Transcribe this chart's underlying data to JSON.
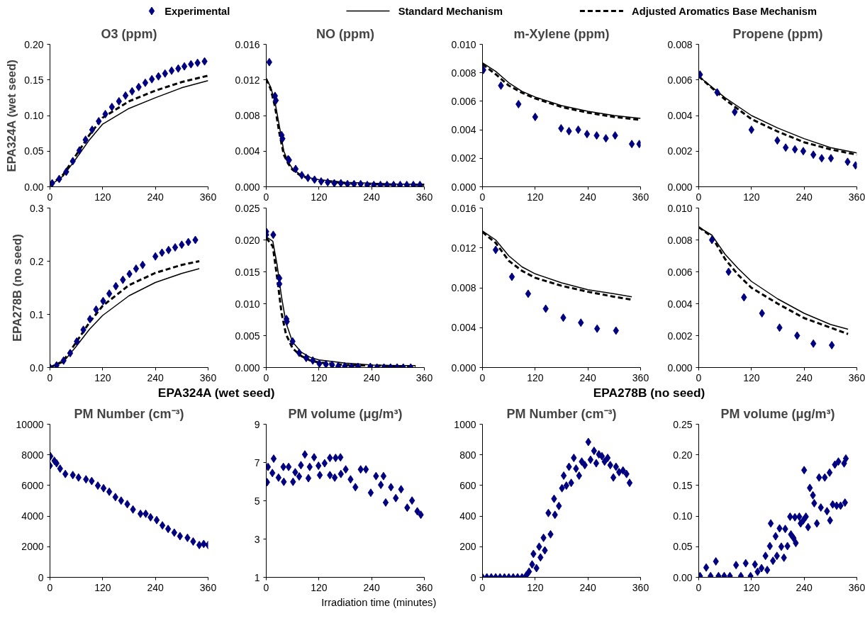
{
  "chart_data": [
    {
      "type": "line",
      "title": "O3 (ppm)",
      "ylabel": "EPA324A (wet seed)",
      "legend": "top",
      "xlim": [
        0,
        360
      ],
      "xticks": [
        0,
        120,
        240,
        360
      ],
      "ylim": [
        0,
        0.2
      ],
      "yticks": [
        {
          "value": 0,
          "label": "0.00"
        },
        {
          "value": 0.05,
          "label": "0.05"
        },
        {
          "value": 0.1,
          "label": "0.10"
        },
        {
          "value": 0.15,
          "label": "0.15"
        },
        {
          "value": 0.2,
          "label": "0.20"
        }
      ],
      "series": [
        {
          "name": "Experimental",
          "type": "scatter",
          "marker": "diamond",
          "color": "#000080",
          "x": [
            5,
            21,
            37,
            52,
            67,
            81,
            96,
            111,
            126,
            141,
            157,
            172,
            187,
            202,
            217,
            232,
            247,
            262,
            277,
            292,
            306,
            321,
            336,
            352
          ],
          "values": [
            0.005,
            0.011,
            0.021,
            0.036,
            0.051,
            0.066,
            0.08,
            0.092,
            0.102,
            0.112,
            0.12,
            0.128,
            0.134,
            0.14,
            0.146,
            0.151,
            0.155,
            0.159,
            0.163,
            0.166,
            0.169,
            0.172,
            0.174,
            0.176
          ]
        },
        {
          "name": "Standard Mechanism",
          "type": "line",
          "line_style": "solid",
          "color": "#000000",
          "x": [
            0,
            30,
            60,
            90,
            120,
            180,
            240,
            300,
            360
          ],
          "values": [
            0.002,
            0.015,
            0.04,
            0.066,
            0.088,
            0.11,
            0.125,
            0.139,
            0.149
          ]
        },
        {
          "name": "Adjusted Aromatics Base Mechanism",
          "type": "line",
          "line_style": "dashed",
          "color": "#000000",
          "x": [
            0,
            30,
            60,
            90,
            120,
            180,
            240,
            300,
            360
          ],
          "values": [
            0.002,
            0.017,
            0.045,
            0.073,
            0.097,
            0.12,
            0.135,
            0.147,
            0.156
          ]
        }
      ]
    },
    {
      "type": "line",
      "title": "NO (ppm)",
      "xlim": [
        0,
        360
      ],
      "xticks": [
        0,
        120,
        240,
        360
      ],
      "ylim": [
        0,
        0.016
      ],
      "yticks": [
        {
          "value": 0,
          "label": "0.000"
        },
        {
          "value": 0.004,
          "label": "0.004"
        },
        {
          "value": 0.008,
          "label": "0.008"
        },
        {
          "value": 0.012,
          "label": "0.012"
        },
        {
          "value": 0.016,
          "label": "0.016"
        }
      ],
      "series": [
        {
          "type": "scatter",
          "marker": "diamond",
          "color": "#000080",
          "x": [
            7,
            20,
            22,
            35,
            37,
            50,
            52,
            67,
            81,
            95,
            110,
            125,
            140,
            155,
            170,
            185,
            200,
            215,
            230,
            245,
            260,
            275,
            290,
            305,
            320,
            335,
            350
          ],
          "values": [
            0.014,
            0.0102,
            0.0097,
            0.0058,
            0.0054,
            0.0031,
            0.003,
            0.002,
            0.0013,
            0.001,
            0.0008,
            0.0006,
            0.0005,
            0.0004,
            0.0004,
            0.0003,
            0.0003,
            0.0003,
            0.0002,
            0.0002,
            0.0002,
            0.0002,
            0.0002,
            0.0002,
            0.0002,
            0.0002,
            0.0002
          ]
        },
        {
          "type": "line",
          "line_style": "solid",
          "color": "#000000",
          "x": [
            0,
            10,
            20,
            30,
            40,
            50,
            60,
            80,
            100,
            120,
            180,
            240,
            300,
            360
          ],
          "values": [
            0.0122,
            0.0112,
            0.0095,
            0.0068,
            0.004,
            0.0028,
            0.002,
            0.0013,
            0.001,
            0.0008,
            0.0005,
            0.0004,
            0.0003,
            0.0003
          ]
        },
        {
          "type": "line",
          "line_style": "dashed",
          "color": "#000000",
          "x": [
            0,
            10,
            20,
            30,
            40,
            50,
            60,
            80,
            100,
            120,
            180,
            240,
            300,
            360
          ],
          "values": [
            0.0121,
            0.011,
            0.009,
            0.006,
            0.0036,
            0.0026,
            0.0019,
            0.0012,
            0.0009,
            0.0007,
            0.0004,
            0.0003,
            0.0002,
            0.0002
          ]
        }
      ]
    },
    {
      "type": "line",
      "title": "m-Xylene (ppm)",
      "xlim": [
        0,
        360
      ],
      "xticks": [
        0,
        120,
        240,
        360
      ],
      "ylim": [
        0,
        0.01
      ],
      "yticks": [
        {
          "value": 0,
          "label": "0.000"
        },
        {
          "value": 0.002,
          "label": "0.002"
        },
        {
          "value": 0.004,
          "label": "0.004"
        },
        {
          "value": 0.006,
          "label": "0.006"
        },
        {
          "value": 0.008,
          "label": "0.008"
        },
        {
          "value": 0.01,
          "label": "0.010"
        }
      ],
      "series": [
        {
          "type": "scatter",
          "marker": "diamond",
          "color": "#000080",
          "x": [
            2,
            42,
            82,
            120,
            179,
            197,
            218,
            238,
            260,
            281,
            302,
            340,
            357
          ],
          "values": [
            0.0082,
            0.0071,
            0.0058,
            0.0049,
            0.0041,
            0.0039,
            0.004,
            0.0037,
            0.0036,
            0.0034,
            0.0036,
            0.003,
            0.003
          ]
        },
        {
          "type": "line",
          "line_style": "solid",
          "color": "#000000",
          "x": [
            0,
            30,
            60,
            90,
            120,
            180,
            240,
            300,
            360
          ],
          "values": [
            0.0087,
            0.0081,
            0.0073,
            0.0067,
            0.0063,
            0.0057,
            0.0053,
            0.005,
            0.0048
          ]
        },
        {
          "type": "line",
          "line_style": "dashed",
          "color": "#000000",
          "x": [
            0,
            30,
            60,
            90,
            120,
            180,
            240,
            300,
            360
          ],
          "values": [
            0.0086,
            0.0079,
            0.0071,
            0.0066,
            0.0062,
            0.0056,
            0.0052,
            0.0049,
            0.0047
          ]
        }
      ]
    },
    {
      "type": "line",
      "title": "Propene (ppm)",
      "xlim": [
        0,
        360
      ],
      "xticks": [
        0,
        120,
        240,
        360
      ],
      "ylim": [
        0,
        0.008
      ],
      "yticks": [
        {
          "value": 0,
          "label": "0.000"
        },
        {
          "value": 0.002,
          "label": "0.002"
        },
        {
          "value": 0.004,
          "label": "0.004"
        },
        {
          "value": 0.006,
          "label": "0.006"
        },
        {
          "value": 0.008,
          "label": "0.008"
        }
      ],
      "series": [
        {
          "type": "scatter",
          "marker": "diamond",
          "color": "#000080",
          "x": [
            3,
            42,
            82,
            120,
            179,
            198,
            219,
            238,
            261,
            280,
            301,
            339,
            357
          ],
          "values": [
            0.0063,
            0.0053,
            0.0042,
            0.0032,
            0.0026,
            0.0022,
            0.0021,
            0.002,
            0.0018,
            0.0016,
            0.0016,
            0.0014,
            0.0012
          ]
        },
        {
          "type": "line",
          "line_style": "solid",
          "color": "#000000",
          "x": [
            0,
            60,
            120,
            180,
            240,
            300,
            360
          ],
          "values": [
            0.0062,
            0.005,
            0.004,
            0.0033,
            0.0027,
            0.0022,
            0.0019
          ]
        },
        {
          "type": "line",
          "line_style": "dashed",
          "color": "#000000",
          "x": [
            0,
            60,
            120,
            180,
            240,
            300,
            360
          ],
          "values": [
            0.0062,
            0.0049,
            0.0038,
            0.0031,
            0.0025,
            0.0021,
            0.0018
          ]
        }
      ]
    },
    {
      "type": "line",
      "ylabel": "EPA278B (no seed)",
      "xlim": [
        0,
        360
      ],
      "xticks": [
        0,
        120,
        240,
        360
      ],
      "ylim": [
        0,
        0.3
      ],
      "yticks": [
        {
          "value": 0,
          "label": "0.0"
        },
        {
          "value": 0.1,
          "label": "0.1"
        },
        {
          "value": 0.2,
          "label": "0.2"
        },
        {
          "value": 0.3,
          "label": "0.3"
        }
      ],
      "series": [
        {
          "type": "scatter",
          "marker": "diamond",
          "color": "#000080",
          "x": [
            0,
            15,
            31,
            46,
            61,
            76,
            91,
            105,
            121,
            135,
            150,
            166,
            181,
            196,
            211,
            240,
            255,
            270,
            285,
            300,
            315,
            331
          ],
          "values": [
            0.0,
            0.004,
            0.013,
            0.027,
            0.049,
            0.071,
            0.091,
            0.109,
            0.125,
            0.139,
            0.153,
            0.165,
            0.176,
            0.186,
            0.193,
            0.209,
            0.216,
            0.221,
            0.226,
            0.231,
            0.236,
            0.24
          ]
        },
        {
          "type": "line",
          "line_style": "solid",
          "color": "#000000",
          "x": [
            0,
            30,
            60,
            90,
            120,
            180,
            240,
            300,
            340
          ],
          "values": [
            0.0,
            0.01,
            0.04,
            0.072,
            0.098,
            0.135,
            0.16,
            0.177,
            0.186
          ]
        },
        {
          "type": "line",
          "line_style": "dashed",
          "color": "#000000",
          "x": [
            0,
            30,
            60,
            90,
            120,
            180,
            240,
            300,
            340
          ],
          "values": [
            0.0,
            0.012,
            0.048,
            0.085,
            0.116,
            0.155,
            0.178,
            0.193,
            0.2
          ]
        }
      ]
    },
    {
      "type": "line",
      "xlim": [
        0,
        360
      ],
      "xticks": [
        0,
        120,
        240,
        360
      ],
      "ylim": [
        0,
        0.025
      ],
      "yticks": [
        {
          "value": 0,
          "label": "0.000"
        },
        {
          "value": 0.005,
          "label": "0.005"
        },
        {
          "value": 0.01,
          "label": "0.010"
        },
        {
          "value": 0.015,
          "label": "0.015"
        },
        {
          "value": 0.02,
          "label": "0.020"
        },
        {
          "value": 0.025,
          "label": "0.025"
        }
      ],
      "series": [
        {
          "type": "scatter",
          "marker": "diamond",
          "color": "#000080",
          "x": [
            0,
            0,
            16,
            30,
            30,
            46,
            47,
            60,
            75,
            91,
            106,
            121,
            136,
            150,
            164,
            179,
            194,
            209,
            237,
            252,
            268,
            283,
            298,
            312,
            329
          ],
          "values": [
            0.0213,
            0.0208,
            0.0208,
            0.014,
            0.0131,
            0.0076,
            0.0072,
            0.0041,
            0.0023,
            0.0015,
            0.0011,
            0.0006,
            0.0005,
            0.0004,
            0.0002,
            0.0002,
            0.0001,
            0.0001,
            0.0001,
            0.0,
            0.0,
            0.0,
            0.0,
            0.0,
            0.0
          ]
        },
        {
          "type": "line",
          "line_style": "solid",
          "color": "#000000",
          "x": [
            0,
            15,
            25,
            35,
            45,
            60,
            80,
            100,
            120,
            180,
            240,
            300,
            340
          ],
          "values": [
            0.0205,
            0.0198,
            0.016,
            0.011,
            0.007,
            0.004,
            0.0024,
            0.0016,
            0.0012,
            0.0007,
            0.0004,
            0.0003,
            0.0003
          ]
        },
        {
          "type": "line",
          "line_style": "dashed",
          "color": "#000000",
          "x": [
            0,
            15,
            25,
            35,
            45,
            60,
            80,
            100,
            120,
            180,
            240,
            300,
            340
          ],
          "values": [
            0.0203,
            0.019,
            0.014,
            0.0085,
            0.0052,
            0.003,
            0.0018,
            0.0011,
            0.0008,
            0.0004,
            0.0003,
            0.0002,
            0.0002
          ]
        }
      ]
    },
    {
      "type": "line",
      "xlim": [
        0,
        360
      ],
      "xticks": [
        0,
        120,
        240,
        360
      ],
      "ylim": [
        0,
        0.016
      ],
      "yticks": [
        {
          "value": 0,
          "label": "0.000"
        },
        {
          "value": 0.004,
          "label": "0.004"
        },
        {
          "value": 0.008,
          "label": "0.008"
        },
        {
          "value": 0.012,
          "label": "0.012"
        },
        {
          "value": 0.016,
          "label": "0.016"
        }
      ],
      "series": [
        {
          "type": "scatter",
          "marker": "diamond",
          "color": "#000080",
          "x": [
            30,
            67,
            104,
            144,
            184,
            224,
            261,
            304
          ],
          "values": [
            0.0118,
            0.0091,
            0.0074,
            0.0059,
            0.005,
            0.0045,
            0.0039,
            0.0037
          ]
        },
        {
          "type": "line",
          "line_style": "solid",
          "color": "#000000",
          "x": [
            0,
            30,
            60,
            90,
            120,
            180,
            240,
            300,
            340
          ],
          "values": [
            0.0137,
            0.0128,
            0.0112,
            0.0101,
            0.0094,
            0.0085,
            0.0078,
            0.0074,
            0.0071
          ]
        },
        {
          "type": "line",
          "line_style": "dashed",
          "color": "#000000",
          "x": [
            0,
            30,
            60,
            90,
            120,
            180,
            240,
            300,
            340
          ],
          "values": [
            0.0136,
            0.0125,
            0.0107,
            0.0097,
            0.009,
            0.0082,
            0.0076,
            0.0071,
            0.0068
          ]
        }
      ]
    },
    {
      "type": "line",
      "xlim": [
        0,
        360
      ],
      "xticks": [
        0,
        120,
        240,
        360
      ],
      "ylim": [
        0,
        0.01
      ],
      "yticks": [
        {
          "value": 0,
          "label": "0.000"
        },
        {
          "value": 0.002,
          "label": "0.002"
        },
        {
          "value": 0.004,
          "label": "0.004"
        },
        {
          "value": 0.006,
          "label": "0.006"
        },
        {
          "value": 0.008,
          "label": "0.008"
        },
        {
          "value": 0.01,
          "label": "0.010"
        }
      ],
      "series": [
        {
          "type": "scatter",
          "marker": "diamond",
          "color": "#000080",
          "x": [
            30,
            68,
            103,
            144,
            184,
            224,
            261,
            303
          ],
          "values": [
            0.008,
            0.006,
            0.0044,
            0.0034,
            0.0025,
            0.002,
            0.0015,
            0.0014
          ]
        },
        {
          "type": "line",
          "line_style": "solid",
          "color": "#000000",
          "x": [
            0,
            30,
            60,
            90,
            120,
            180,
            240,
            300,
            340
          ],
          "values": [
            0.0088,
            0.0083,
            0.0071,
            0.0062,
            0.0054,
            0.0043,
            0.0034,
            0.0027,
            0.0024
          ]
        },
        {
          "type": "line",
          "line_style": "dashed",
          "color": "#000000",
          "x": [
            0,
            30,
            60,
            90,
            120,
            180,
            240,
            300,
            340
          ],
          "values": [
            0.0088,
            0.0082,
            0.0068,
            0.0058,
            0.005,
            0.004,
            0.0031,
            0.0025,
            0.0021
          ]
        }
      ]
    },
    {
      "type": "scatter",
      "title": "PM Number (cm⁻³)",
      "subtitle": "EPA324A (wet seed)",
      "marker": "diamond",
      "color": "#000080",
      "xlim": [
        0,
        360
      ],
      "xticks": [
        0,
        120,
        240,
        360
      ],
      "ylim": [
        0,
        10000
      ],
      "yticks": [
        0,
        2000,
        4000,
        6000,
        8000,
        10000
      ],
      "x": [
        0,
        1,
        10,
        15,
        23,
        35,
        52,
        65,
        82,
        95,
        109,
        122,
        135,
        149,
        162,
        176,
        189,
        206,
        218,
        229,
        243,
        256,
        269,
        283,
        296,
        313,
        326,
        340,
        350,
        360
      ],
      "values": [
        7290,
        7910,
        7610,
        7450,
        7100,
        6750,
        6680,
        6520,
        6400,
        6290,
        5990,
        5820,
        5590,
        5240,
        5010,
        4780,
        4430,
        4150,
        4150,
        3920,
        3740,
        3390,
        3160,
        2920,
        2690,
        2580,
        2340,
        2110,
        2180,
        2110
      ]
    },
    {
      "type": "scatter",
      "title": "PM volume (μg/m³)",
      "annotations": [
        "Irradiation time (minutes)"
      ],
      "marker": "diamond",
      "color": "#000080",
      "xlim": [
        0,
        360
      ],
      "xticks": [
        0,
        120,
        240,
        360
      ],
      "ylim": [
        1,
        9
      ],
      "yticks": [
        1,
        3,
        5,
        7,
        9
      ],
      "x": [
        2,
        4,
        14,
        17,
        28,
        39,
        40,
        51,
        61,
        66,
        75,
        79,
        88,
        96,
        99,
        109,
        119,
        122,
        133,
        145,
        145,
        156,
        158,
        169,
        170,
        181,
        192,
        203,
        215,
        227,
        238,
        250,
        261,
        267,
        272,
        284,
        295,
        307,
        321,
        332,
        344,
        352
      ],
      "values": [
        5.97,
        6.77,
        6.45,
        7.2,
        6.21,
        6.77,
        5.99,
        6.77,
        5.99,
        6.49,
        6.27,
        6.86,
        7.42,
        6.18,
        6.77,
        7.27,
        6.83,
        6.34,
        6.96,
        7.24,
        6.34,
        6.21,
        7.24,
        7.27,
        6.4,
        6.64,
        6.12,
        5.71,
        6.64,
        6.64,
        5.42,
        6.29,
        5.83,
        6.29,
        4.91,
        5.71,
        5.14,
        5.6,
        4.64,
        5.01,
        4.45,
        4.27
      ]
    },
    {
      "type": "scatter",
      "title": "PM Number (cm⁻³)",
      "subtitle": "EPA278B (no seed)",
      "marker": "diamond",
      "color": "#000080",
      "xlim": [
        0,
        360
      ],
      "xticks": [
        0,
        120,
        240,
        360
      ],
      "ylim": [
        0,
        1000
      ],
      "yticks": [
        0,
        200,
        400,
        600,
        800,
        1000
      ],
      "x": [
        0,
        10,
        20,
        30,
        40,
        50,
        60,
        70,
        80,
        90,
        100,
        106,
        113,
        116,
        123,
        129,
        132,
        139,
        142,
        150,
        155,
        163,
        165,
        174,
        181,
        185,
        191,
        197,
        202,
        208,
        213,
        220,
        226,
        233,
        241,
        246,
        254,
        259,
        265,
        272,
        278,
        285,
        291,
        298,
        304,
        311,
        320,
        328,
        335
      ],
      "values": [
        0,
        0,
        0,
        0,
        0,
        0,
        0,
        0,
        0,
        0,
        14,
        37,
        84,
        153,
        60,
        200,
        130,
        258,
        176,
        420,
        281,
        513,
        408,
        466,
        582,
        664,
        599,
        722,
        617,
        780,
        710,
        664,
        756,
        733,
        884,
        768,
        826,
        745,
        803,
        791,
        756,
        780,
        733,
        652,
        722,
        687,
        698,
        675,
        617
      ]
    },
    {
      "type": "scatter",
      "title": "PM volume (μg/m³)",
      "marker": "diamond",
      "color": "#000080",
      "xlim": [
        0,
        360
      ],
      "xticks": [
        0,
        120,
        240,
        360
      ],
      "ylim": [
        0,
        0.25
      ],
      "yticks": [
        {
          "value": 0,
          "label": "0.00"
        },
        {
          "value": 0.05,
          "label": "0.05"
        },
        {
          "value": 0.1,
          "label": "0.10"
        },
        {
          "value": 0.15,
          "label": "0.15"
        },
        {
          "value": 0.2,
          "label": "0.20"
        },
        {
          "value": 0.25,
          "label": "0.25"
        }
      ],
      "x": [
        3,
        17,
        27,
        39,
        45,
        58,
        71,
        85,
        96,
        107,
        118,
        128,
        134,
        143,
        152,
        156,
        162,
        164,
        169,
        175,
        178,
        184,
        188,
        194,
        197,
        202,
        208,
        210,
        216,
        219,
        221,
        229,
        232,
        238,
        240,
        244,
        249,
        253,
        260,
        263,
        269,
        274,
        278,
        287,
        292,
        298,
        299,
        305,
        310,
        314,
        318,
        323,
        331,
        333,
        335
      ],
      "values": [
        0.002,
        0.016,
        0.002,
        0.026,
        0.002,
        0.002,
        0.002,
        0.02,
        0.002,
        0.023,
        0.002,
        0.021,
        0.009,
        0.015,
        0.035,
        0.012,
        0.051,
        0.088,
        0.027,
        0.067,
        0.035,
        0.08,
        0.05,
        0.032,
        0.079,
        0.051,
        0.099,
        0.07,
        0.064,
        0.098,
        0.056,
        0.099,
        0.088,
        0.093,
        0.175,
        0.099,
        0.082,
        0.146,
        0.134,
        0.121,
        0.088,
        0.163,
        0.114,
        0.163,
        0.108,
        0.171,
        0.093,
        0.119,
        0.184,
        0.117,
        0.189,
        0.117,
        0.186,
        0.122,
        0.194
      ]
    }
  ]
}
